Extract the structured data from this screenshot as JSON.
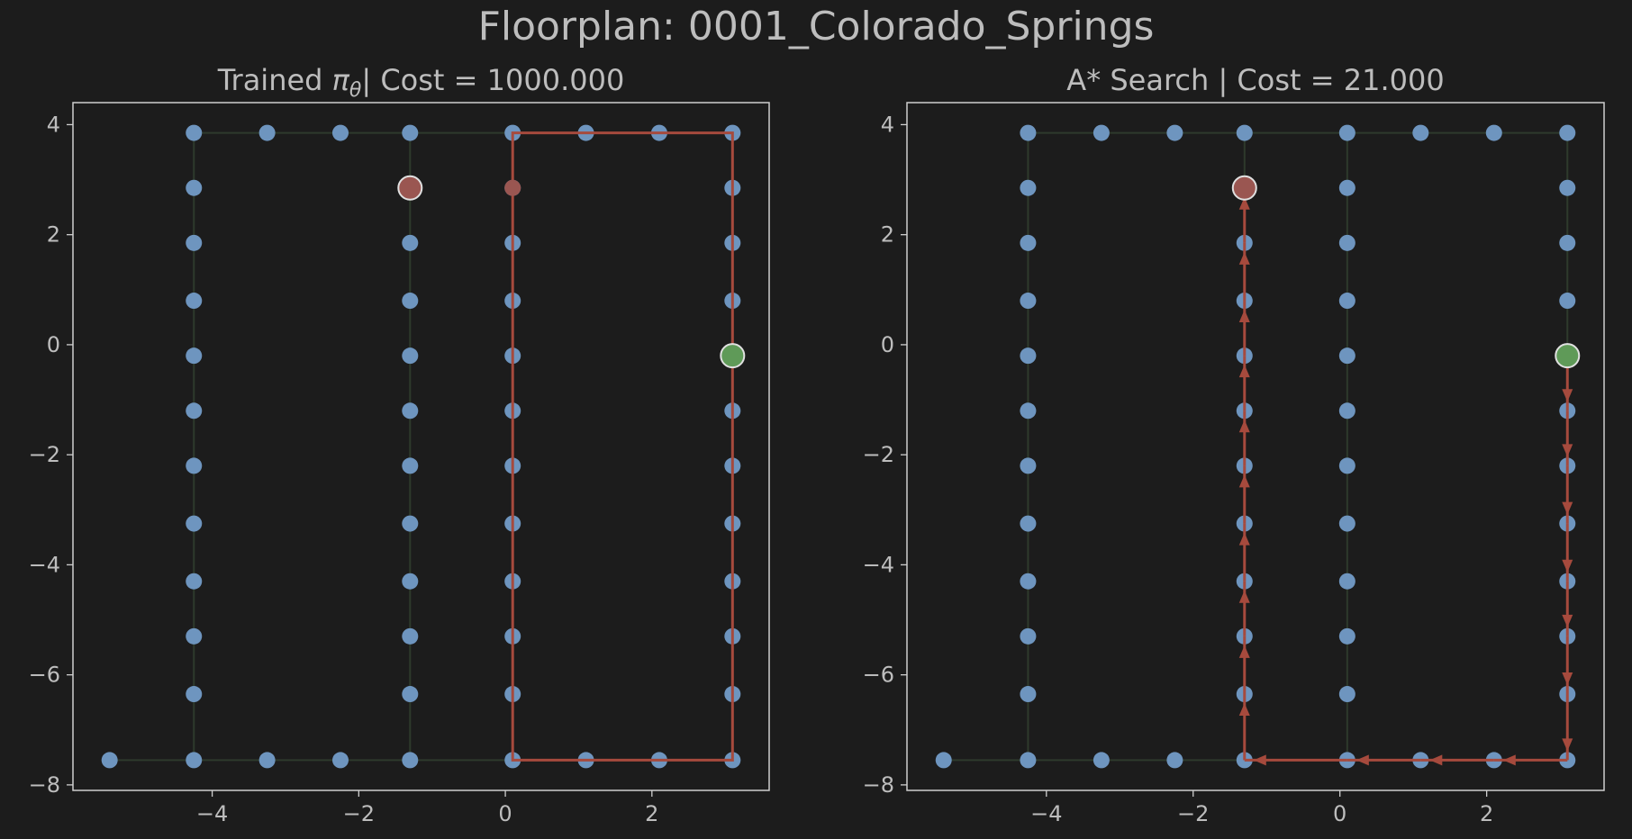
{
  "figure": {
    "suptitle": "Floorplan: 0001_Colorado_Springs",
    "colors": {
      "background": "#1c1c1c",
      "frame": "#cfcfcf",
      "text": "#bdbdbd",
      "node": "#6e95bf",
      "edge": "#2e3a2c",
      "path": "#a64a3d",
      "start": "#9a5651",
      "goal": "#5f9a58",
      "marker_edge": "#e0e0e0"
    }
  },
  "chart_data": [
    {
      "type": "scatter",
      "title_prefix": "Trained ",
      "title_symbol": "π",
      "title_subscript": "θ",
      "title_suffix": "| Cost = 1000.000",
      "xlim": [
        -5.9,
        3.6
      ],
      "ylim": [
        -8.1,
        4.4
      ],
      "xticks": [
        -4,
        -2,
        0,
        2
      ],
      "yticks": [
        -8,
        -6,
        -4,
        -2,
        0,
        2,
        4
      ],
      "xtick_labels": [
        "−4",
        "−2",
        "0",
        "2"
      ],
      "ytick_labels": [
        "−8",
        "−6",
        "−4",
        "−2",
        "0",
        "2",
        "4"
      ],
      "grid": false,
      "path_style": "line",
      "path": [
        [
          0.1,
          2.85
        ],
        [
          0.1,
          3.85
        ],
        [
          3.1,
          3.85
        ],
        [
          3.1,
          -7.55
        ],
        [
          0.1,
          -7.55
        ],
        [
          0.1,
          2.85
        ]
      ],
      "visited_nodes": [
        [
          0.1,
          2.85
        ]
      ],
      "start": [
        -1.3,
        2.85
      ],
      "goal": [
        3.1,
        -0.2
      ]
    },
    {
      "type": "scatter",
      "title": "A* Search | Cost = 21.000",
      "xlim": [
        -5.9,
        3.6
      ],
      "ylim": [
        -8.1,
        4.4
      ],
      "xticks": [
        -4,
        -2,
        0,
        2
      ],
      "yticks": [
        -8,
        -6,
        -4,
        -2,
        0,
        2,
        4
      ],
      "xtick_labels": [
        "−4",
        "−2",
        "0",
        "2"
      ],
      "ytick_labels": [
        "−8",
        "−6",
        "−4",
        "−2",
        "0",
        "2",
        "4"
      ],
      "grid": false,
      "path_style": "arrows",
      "path": [
        [
          3.1,
          -0.2
        ],
        [
          3.1,
          -1.2
        ],
        [
          3.1,
          -2.2
        ],
        [
          3.1,
          -3.25
        ],
        [
          3.1,
          -4.3
        ],
        [
          3.1,
          -5.3
        ],
        [
          3.1,
          -6.35
        ],
        [
          3.1,
          -7.55
        ],
        [
          2.1,
          -7.55
        ],
        [
          1.1,
          -7.55
        ],
        [
          0.1,
          -7.55
        ],
        [
          -1.3,
          -7.55
        ],
        [
          -1.3,
          -6.35
        ],
        [
          -1.3,
          -5.3
        ],
        [
          -1.3,
          -4.3
        ],
        [
          -1.3,
          -3.25
        ],
        [
          -1.3,
          -2.2
        ],
        [
          -1.3,
          -1.2
        ],
        [
          -1.3,
          -0.2
        ],
        [
          -1.3,
          0.8
        ],
        [
          -1.3,
          1.85
        ],
        [
          -1.3,
          2.85
        ]
      ],
      "visited_nodes": [],
      "start": [
        -1.3,
        2.85
      ],
      "goal": [
        3.1,
        -0.2
      ]
    }
  ],
  "graph": {
    "nodes": [
      [
        -4.25,
        3.85
      ],
      [
        -3.25,
        3.85
      ],
      [
        -2.25,
        3.85
      ],
      [
        -1.3,
        3.85
      ],
      [
        0.1,
        3.85
      ],
      [
        1.1,
        3.85
      ],
      [
        2.1,
        3.85
      ],
      [
        3.1,
        3.85
      ],
      [
        -4.25,
        2.85
      ],
      [
        -4.25,
        1.85
      ],
      [
        -4.25,
        0.8
      ],
      [
        -4.25,
        -0.2
      ],
      [
        -4.25,
        -1.2
      ],
      [
        -4.25,
        -2.2
      ],
      [
        -4.25,
        -3.25
      ],
      [
        -4.25,
        -4.3
      ],
      [
        -4.25,
        -5.3
      ],
      [
        -4.25,
        -6.35
      ],
      [
        -1.3,
        2.85
      ],
      [
        -1.3,
        1.85
      ],
      [
        -1.3,
        0.8
      ],
      [
        -1.3,
        -0.2
      ],
      [
        -1.3,
        -1.2
      ],
      [
        -1.3,
        -2.2
      ],
      [
        -1.3,
        -3.25
      ],
      [
        -1.3,
        -4.3
      ],
      [
        -1.3,
        -5.3
      ],
      [
        -1.3,
        -6.35
      ],
      [
        0.1,
        2.85
      ],
      [
        0.1,
        1.85
      ],
      [
        0.1,
        0.8
      ],
      [
        0.1,
        -0.2
      ],
      [
        0.1,
        -1.2
      ],
      [
        0.1,
        -2.2
      ],
      [
        0.1,
        -3.25
      ],
      [
        0.1,
        -4.3
      ],
      [
        0.1,
        -5.3
      ],
      [
        0.1,
        -6.35
      ],
      [
        3.1,
        2.85
      ],
      [
        3.1,
        1.85
      ],
      [
        3.1,
        0.8
      ],
      [
        3.1,
        -0.2
      ],
      [
        3.1,
        -1.2
      ],
      [
        3.1,
        -2.2
      ],
      [
        3.1,
        -3.25
      ],
      [
        3.1,
        -4.3
      ],
      [
        3.1,
        -5.3
      ],
      [
        3.1,
        -6.35
      ],
      [
        -5.4,
        -7.55
      ],
      [
        -4.25,
        -7.55
      ],
      [
        -3.25,
        -7.55
      ],
      [
        -2.25,
        -7.55
      ],
      [
        -1.3,
        -7.55
      ],
      [
        0.1,
        -7.55
      ],
      [
        1.1,
        -7.55
      ],
      [
        2.1,
        -7.55
      ],
      [
        3.1,
        -7.55
      ]
    ],
    "edges": [
      [
        [
          -4.25,
          3.85
        ],
        [
          3.1,
          3.85
        ]
      ],
      [
        [
          -5.4,
          -7.55
        ],
        [
          3.1,
          -7.55
        ]
      ],
      [
        [
          -4.25,
          3.85
        ],
        [
          -4.25,
          -7.55
        ]
      ],
      [
        [
          -1.3,
          3.85
        ],
        [
          -1.3,
          -7.55
        ]
      ],
      [
        [
          0.1,
          3.85
        ],
        [
          0.1,
          -7.55
        ]
      ],
      [
        [
          3.1,
          3.85
        ],
        [
          3.1,
          -7.55
        ]
      ]
    ]
  }
}
